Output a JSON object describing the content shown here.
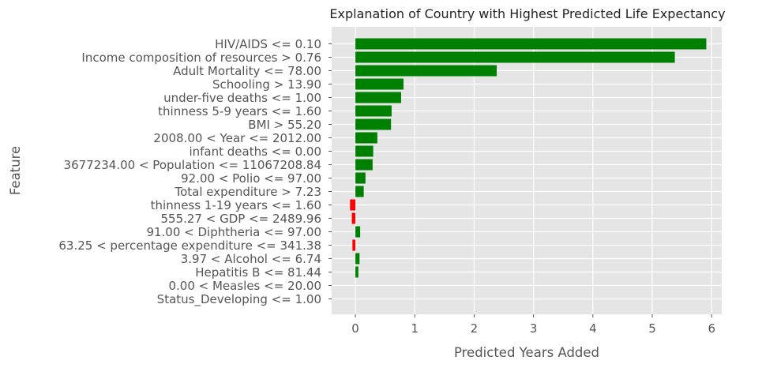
{
  "chart_data": {
    "type": "bar",
    "orientation": "horizontal",
    "title": "Explanation of Country with Highest Predicted Life Expectancy",
    "xlabel": "Predicted Years Added",
    "ylabel": "Feature",
    "xlim": [
      -0.4,
      6.17
    ],
    "xticks": [
      "0",
      "1",
      "2",
      "3",
      "4",
      "5",
      "6"
    ],
    "grid": true,
    "positive_color": "#008000",
    "negative_color": "#ff0000",
    "background_color": "#e5e5e5",
    "categories": [
      "HIV/AIDS <= 0.10",
      "Income composition of resources > 0.76",
      "Adult Mortality <= 78.00",
      "Schooling > 13.90",
      "under-five deaths <= 1.00",
      "thinness 5-9 years <= 1.60",
      "BMI > 55.20",
      "2008.00 < Year <= 2012.00",
      "infant deaths <= 0.00",
      "3677234.00 < Population <= 11067208.84",
      "92.00 < Polio <= 97.00",
      "Total expenditure > 7.23",
      "thinness  1-19 years <= 1.60",
      "555.27 < GDP <= 2489.96",
      "91.00 < Diphtheria <= 97.00",
      "63.25 < percentage expenditure <= 341.38",
      "3.97 < Alcohol <= 6.74",
      "Hepatitis B <= 81.44",
      "0.00 < Measles <= 20.00",
      "Status_Developing <= 1.00"
    ],
    "values": [
      5.91,
      5.38,
      2.38,
      0.81,
      0.77,
      0.61,
      0.6,
      0.37,
      0.3,
      0.29,
      0.17,
      0.14,
      -0.09,
      -0.06,
      0.08,
      -0.05,
      0.07,
      0.05,
      0.0,
      0.0
    ]
  }
}
